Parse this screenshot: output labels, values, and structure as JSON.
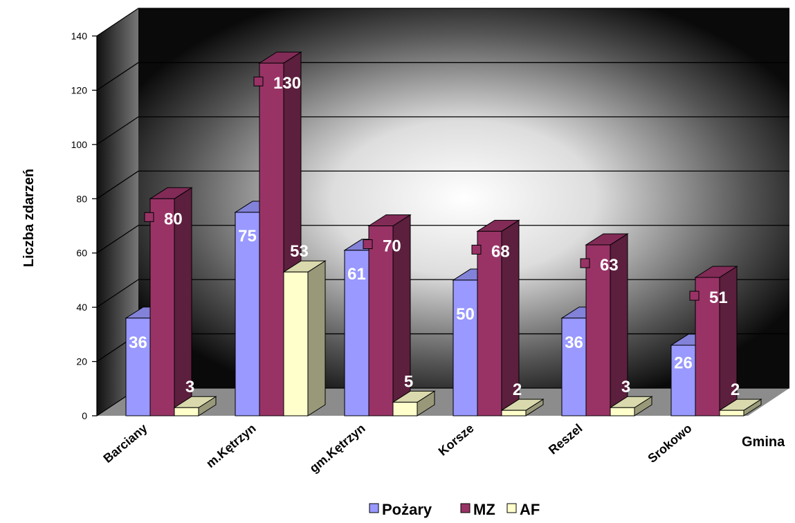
{
  "chart_data": {
    "type": "bar",
    "categories": [
      "Barciany",
      "m.Kętrzyn",
      "gm.Kętrzyn",
      "Korsze",
      "Reszel",
      "Srokowo"
    ],
    "series": [
      {
        "name": "Pożary",
        "values": [
          36,
          75,
          61,
          50,
          36,
          26
        ],
        "color": "#9999ff"
      },
      {
        "name": "MZ",
        "values": [
          80,
          130,
          70,
          68,
          63,
          51
        ],
        "color": "#993366"
      },
      {
        "name": "AF",
        "values": [
          3,
          53,
          5,
          2,
          3,
          2
        ],
        "color": "#ffffcc"
      }
    ],
    "xlabel": "Gmina",
    "ylabel": "Liczba zdarzeń",
    "ylim": [
      0,
      140
    ],
    "yticks": [
      0,
      20,
      40,
      60,
      80,
      100,
      120,
      140
    ],
    "grid": true,
    "legend_position": "bottom",
    "style": "3d-clustered-column"
  }
}
